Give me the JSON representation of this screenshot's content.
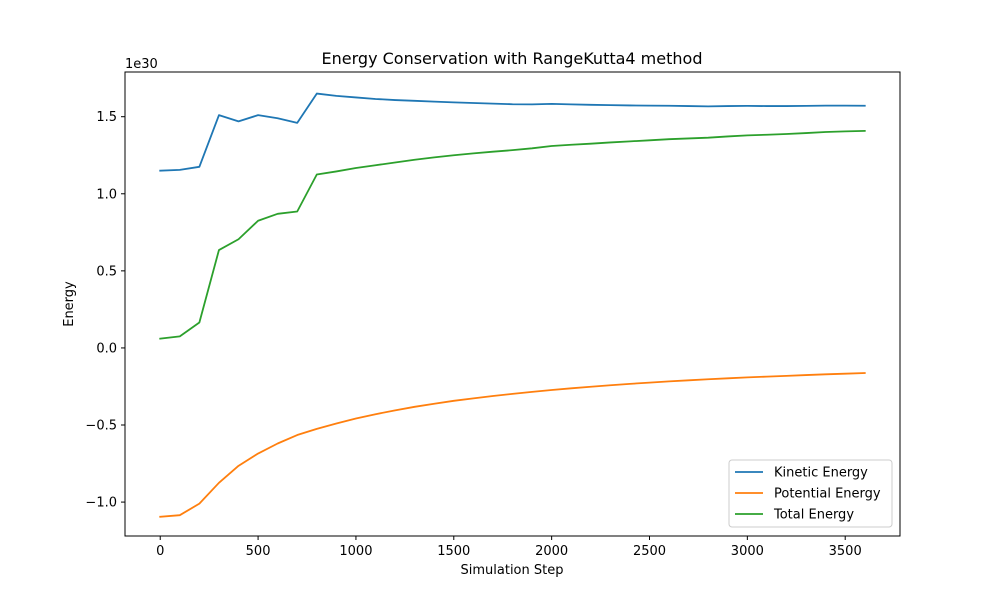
{
  "chart_data": {
    "type": "line",
    "title": "Energy Conservation with RangeKutta4 method",
    "xlabel": "Simulation Step",
    "ylabel": "Energy",
    "y_scale_label": "1e30",
    "xlim": [
      -180,
      3780
    ],
    "ylim": [
      -1.22,
      1.79
    ],
    "x_ticks": [
      0,
      500,
      1000,
      1500,
      2000,
      2500,
      3000,
      3500
    ],
    "x_tick_labels": [
      "0",
      "500",
      "1000",
      "1500",
      "2000",
      "2500",
      "3000",
      "3500"
    ],
    "y_ticks": [
      -1.0,
      -0.5,
      0.0,
      0.5,
      1.0,
      1.5
    ],
    "y_tick_labels": [
      "−1.0",
      "−0.5",
      "0.0",
      "0.5",
      "1.0",
      "1.5"
    ],
    "grid": false,
    "legend_position": "bottom-right",
    "x": [
      0,
      100,
      200,
      300,
      400,
      500,
      600,
      700,
      800,
      900,
      1000,
      1100,
      1200,
      1300,
      1400,
      1500,
      1600,
      1700,
      1800,
      1900,
      2000,
      2100,
      2200,
      2300,
      2400,
      2500,
      2600,
      2700,
      2800,
      2900,
      3000,
      3100,
      3200,
      3300,
      3400,
      3500,
      3600
    ],
    "series": [
      {
        "name": "Kinetic Energy",
        "color": "#1f77b4",
        "values": [
          1.15,
          1.155,
          1.175,
          1.51,
          1.47,
          1.51,
          1.49,
          1.46,
          1.65,
          1.635,
          1.625,
          1.615,
          1.608,
          1.603,
          1.598,
          1.593,
          1.589,
          1.585,
          1.581,
          1.58,
          1.583,
          1.58,
          1.577,
          1.575,
          1.573,
          1.572,
          1.571,
          1.569,
          1.567,
          1.569,
          1.57,
          1.569,
          1.569,
          1.57,
          1.572,
          1.572,
          1.571
        ]
      },
      {
        "name": "Potential Energy",
        "color": "#ff7f0e",
        "values": [
          -1.095,
          -1.085,
          -1.01,
          -0.875,
          -0.765,
          -0.685,
          -0.62,
          -0.565,
          -0.525,
          -0.49,
          -0.458,
          -0.43,
          -0.405,
          -0.382,
          -0.362,
          -0.343,
          -0.327,
          -0.312,
          -0.298,
          -0.285,
          -0.273,
          -0.262,
          -0.252,
          -0.242,
          -0.233,
          -0.225,
          -0.217,
          -0.21,
          -0.203,
          -0.197,
          -0.191,
          -0.186,
          -0.181,
          -0.176,
          -0.171,
          -0.167,
          -0.163
        ]
      },
      {
        "name": "Total Energy",
        "color": "#2ca02c",
        "values": [
          0.06,
          0.075,
          0.165,
          0.635,
          0.705,
          0.825,
          0.87,
          0.885,
          1.125,
          1.145,
          1.167,
          1.185,
          1.203,
          1.221,
          1.236,
          1.25,
          1.262,
          1.273,
          1.283,
          1.295,
          1.31,
          1.318,
          1.325,
          1.333,
          1.34,
          1.347,
          1.354,
          1.359,
          1.364,
          1.372,
          1.379,
          1.383,
          1.388,
          1.394,
          1.401,
          1.405,
          1.408
        ]
      }
    ]
  }
}
